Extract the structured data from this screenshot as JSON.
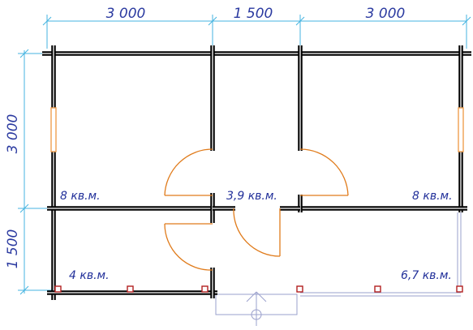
{
  "dimensions": {
    "top": [
      "3 000",
      "1 500",
      "3 000"
    ],
    "left": [
      "3 000",
      "1 500"
    ]
  },
  "rooms": [
    {
      "label": "8 кв.м."
    },
    {
      "label": "3,9 кв.м."
    },
    {
      "label": "8 кв.м."
    },
    {
      "label": "4 кв.м."
    },
    {
      "label": "6,7 кв.м."
    }
  ],
  "colors": {
    "dimension": "#44b3e0",
    "dimension_text": "#2b3aa0",
    "wall": "#000000",
    "door": "#e07b1b",
    "window": "#f0a050",
    "post": "#b22020",
    "terrace": "#9aa0cc"
  }
}
